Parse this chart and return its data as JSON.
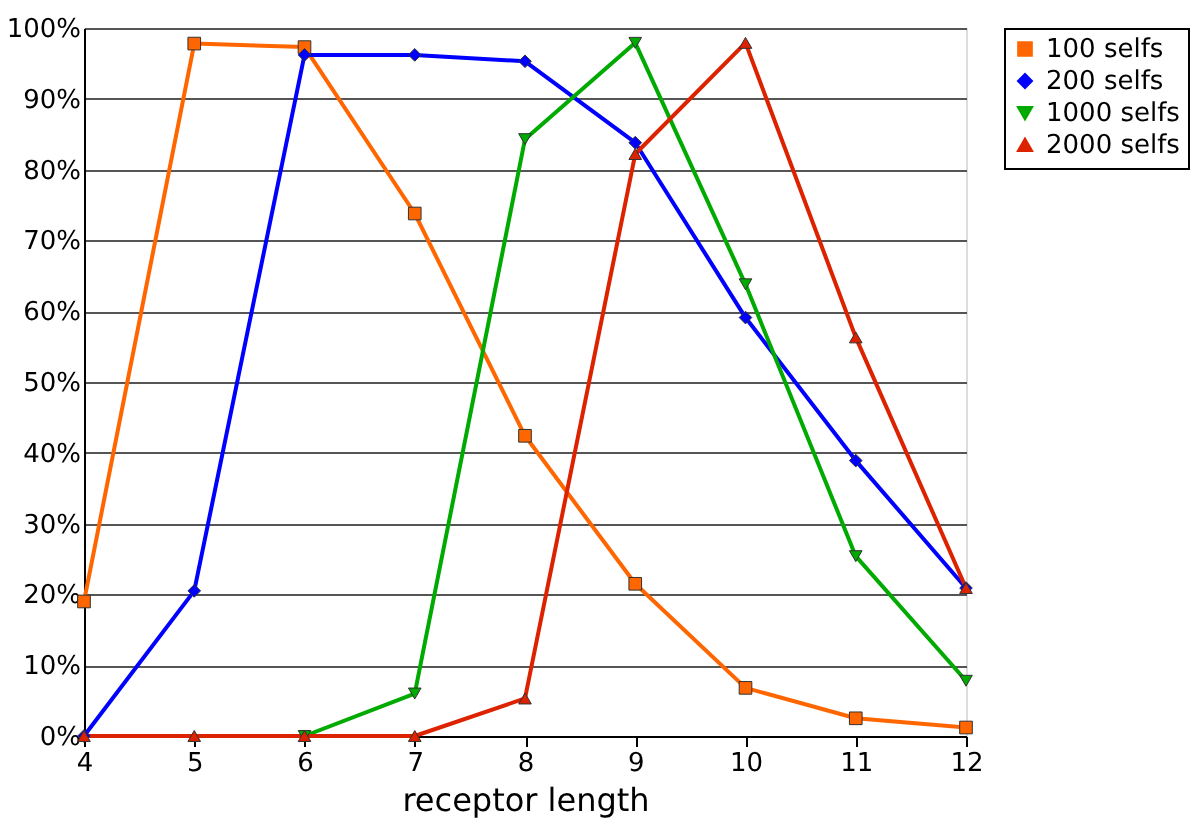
{
  "chart_data": {
    "type": "line",
    "xlabel": "receptor length",
    "x": [
      4,
      5,
      6,
      7,
      8,
      9,
      10,
      11,
      12
    ],
    "xlim": [
      4,
      12
    ],
    "xticks": [
      4,
      5,
      6,
      7,
      8,
      9,
      10,
      11,
      12
    ],
    "ylim": [
      0,
      100
    ],
    "yticks": [
      {
        "value": 0,
        "label": "0%"
      },
      {
        "value": 10,
        "label": "10%"
      },
      {
        "value": 20,
        "label": "20%"
      },
      {
        "value": 30,
        "label": "30%"
      },
      {
        "value": 40,
        "label": "40%"
      },
      {
        "value": 50,
        "label": "50%"
      },
      {
        "value": 60,
        "label": "60%"
      },
      {
        "value": 70,
        "label": "70%"
      },
      {
        "value": 80,
        "label": "80%"
      },
      {
        "value": 90,
        "label": "90%"
      },
      {
        "value": 100,
        "label": "100%"
      }
    ],
    "grid": "y",
    "legend": "right",
    "line_style": "solid",
    "series": [
      {
        "name": "100 selfs",
        "color": "#ff6600",
        "marker": "square",
        "values": [
          19,
          97.8,
          97.3,
          73.8,
          42.4,
          21.5,
          6.8,
          2.5,
          1.2
        ]
      },
      {
        "name": "200 selfs",
        "color": "#0000ff",
        "marker": "diamond",
        "values": [
          0,
          20.5,
          96.2,
          96.2,
          95.3,
          83.8,
          59.1,
          38.9,
          20.9
        ]
      },
      {
        "name": "1000 selfs",
        "color": "#00aa00",
        "marker": "triangle-down",
        "values": [
          null,
          null,
          0,
          6,
          84.3,
          97.9,
          63.8,
          25.4,
          7.8
        ]
      },
      {
        "name": "2000 selfs",
        "color": "#dd2200",
        "marker": "triangle",
        "values": [
          0,
          0,
          0,
          0,
          5.3,
          82.2,
          97.9,
          56.3,
          20.9
        ]
      }
    ]
  }
}
